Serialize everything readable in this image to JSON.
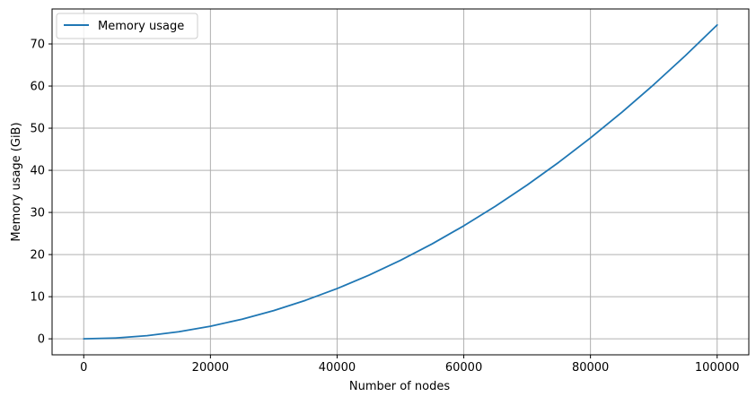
{
  "chart_data": {
    "type": "line",
    "title": "",
    "xlabel": "Number of nodes",
    "ylabel": "Memory usage (GiB)",
    "xlim": [
      -5000,
      105000
    ],
    "ylim": [
      -3.8,
      78.3
    ],
    "x_ticks": [
      0,
      20000,
      40000,
      60000,
      80000,
      100000
    ],
    "x_tick_labels": [
      "0",
      "20000",
      "40000",
      "60000",
      "80000",
      "100000"
    ],
    "y_ticks": [
      0,
      10,
      20,
      30,
      40,
      50,
      60,
      70
    ],
    "y_tick_labels": [
      "0",
      "10",
      "20",
      "30",
      "40",
      "50",
      "60",
      "70"
    ],
    "grid": true,
    "legend": {
      "position": "top-left",
      "entries": [
        "Memory usage"
      ]
    },
    "series": [
      {
        "name": "Memory usage",
        "color": "#1f77b4",
        "x": [
          0,
          5000,
          10000,
          15000,
          20000,
          25000,
          30000,
          35000,
          40000,
          45000,
          50000,
          55000,
          60000,
          65000,
          70000,
          75000,
          80000,
          85000,
          90000,
          95000,
          100000
        ],
        "y": [
          0,
          0.19,
          0.75,
          1.68,
          2.98,
          4.66,
          6.71,
          9.13,
          11.92,
          15.09,
          18.63,
          22.54,
          26.82,
          31.48,
          36.51,
          41.91,
          47.68,
          53.83,
          60.35,
          67.24,
          74.5
        ]
      }
    ]
  }
}
